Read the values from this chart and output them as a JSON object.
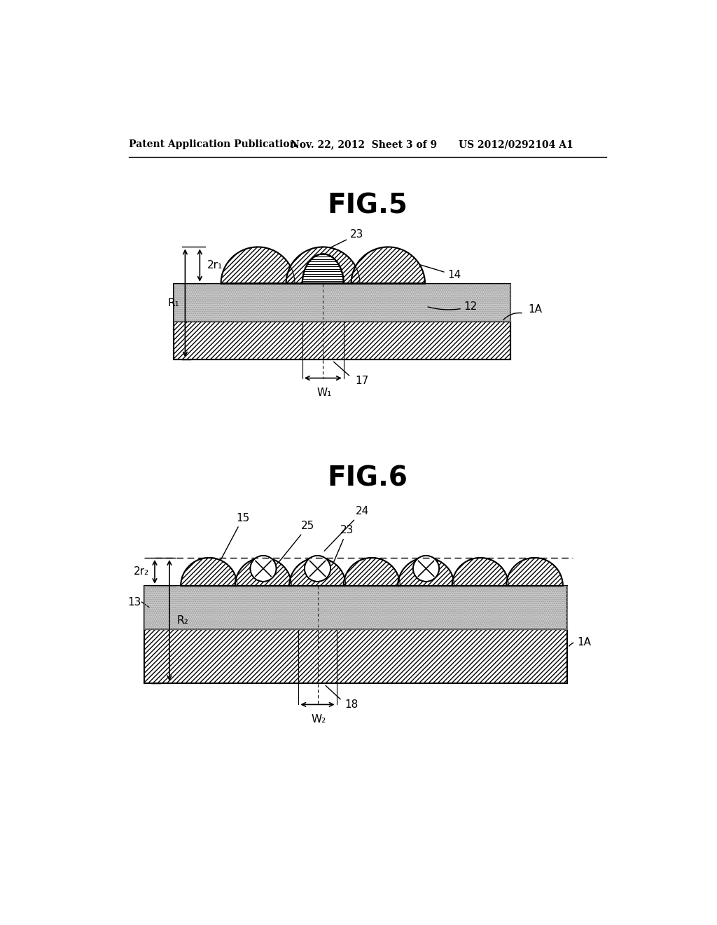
{
  "bg_color": "#ffffff",
  "line_color": "#000000",
  "fig5_title": "FIG.5",
  "fig6_title": "FIG.6",
  "header_left": "Patent Application Publication",
  "header_mid": "Nov. 22, 2012  Sheet 3 of 9",
  "header_right": "US 2012/0292104 A1"
}
